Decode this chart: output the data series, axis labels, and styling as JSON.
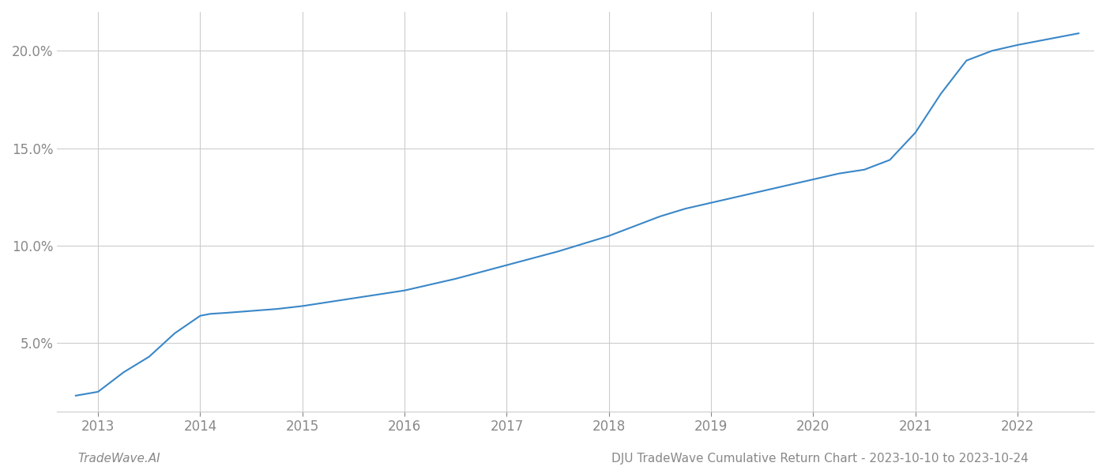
{
  "x_values": [
    2012.78,
    2013.0,
    2013.1,
    2013.25,
    2013.5,
    2013.75,
    2014.0,
    2014.1,
    2014.25,
    2014.5,
    2014.75,
    2015.0,
    2015.25,
    2015.5,
    2015.75,
    2016.0,
    2016.25,
    2016.5,
    2016.75,
    2017.0,
    2017.25,
    2017.5,
    2017.75,
    2018.0,
    2018.25,
    2018.5,
    2018.75,
    2019.0,
    2019.25,
    2019.5,
    2019.75,
    2020.0,
    2020.25,
    2020.5,
    2020.65,
    2020.75,
    2021.0,
    2021.25,
    2021.5,
    2021.75,
    2022.0,
    2022.3,
    2022.6
  ],
  "y_values": [
    2.3,
    2.5,
    2.9,
    3.5,
    4.3,
    5.5,
    6.4,
    6.5,
    6.55,
    6.65,
    6.75,
    6.9,
    7.1,
    7.3,
    7.5,
    7.7,
    8.0,
    8.3,
    8.65,
    9.0,
    9.35,
    9.7,
    10.1,
    10.5,
    11.0,
    11.5,
    11.9,
    12.2,
    12.5,
    12.8,
    13.1,
    13.4,
    13.7,
    13.9,
    14.2,
    14.4,
    15.8,
    17.8,
    19.5,
    20.0,
    20.3,
    20.6,
    20.9
  ],
  "line_color": "#3a87c8",
  "line_width": 1.5,
  "background_color": "#ffffff",
  "grid_color": "#cccccc",
  "tick_label_color": "#888888",
  "footer_left": "TradeWave.AI",
  "footer_right": "DJU TradeWave Cumulative Return Chart - 2023-10-10 to 2023-10-24",
  "footer_color": "#888888",
  "footer_fontsize": 11,
  "ytick_labels": [
    "5.0%",
    "10.0%",
    "15.0%",
    "20.0%"
  ],
  "ytick_values": [
    5.0,
    10.0,
    15.0,
    20.0
  ],
  "xtick_values": [
    2013,
    2014,
    2015,
    2016,
    2017,
    2018,
    2019,
    2020,
    2021,
    2022
  ],
  "xlim": [
    2012.6,
    2022.75
  ],
  "ylim": [
    1.5,
    22.0
  ]
}
